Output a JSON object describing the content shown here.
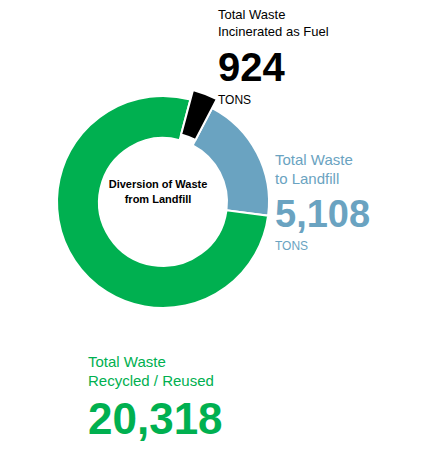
{
  "chart_data": {
    "type": "donut",
    "center_label": "Diversion of Waste\nfrom Landfill",
    "categories": [
      "Total Waste\nIncinerated as Fuel",
      "Total Waste\nto Landfill",
      "Total Waste\nRecycled / Reused"
    ],
    "values": [
      924,
      5108,
      20318
    ],
    "value_labels": [
      "924",
      "5,108",
      "20,318"
    ],
    "unit_labels": [
      "TONS",
      "TONS",
      null
    ],
    "colors": [
      "#000000",
      "#6aa3c1",
      "#00b050"
    ],
    "data_labels": true
  }
}
